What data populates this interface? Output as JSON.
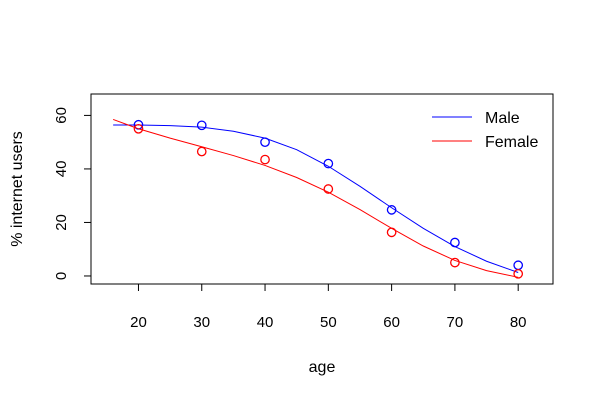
{
  "chart_data": {
    "type": "scatter",
    "title": "",
    "xlabel": "age",
    "ylabel": "% internet users",
    "xlim": [
      12.5,
      85.5
    ],
    "ylim": [
      -3,
      68
    ],
    "xticks": [
      20,
      30,
      40,
      50,
      60,
      70,
      80
    ],
    "yticks": [
      0,
      20,
      40,
      60
    ],
    "grid": false,
    "legend_position": "top-right",
    "series": [
      {
        "name": "Male",
        "color": "#0000ff",
        "marker": "open-circle",
        "x": [
          20,
          30,
          40,
          50,
          60,
          70,
          80
        ],
        "y": [
          56.5,
          56.3,
          50.0,
          42.0,
          24.7,
          12.5,
          4.0
        ],
        "fit_curve": {
          "x": [
            16,
            20,
            25,
            30,
            35,
            40,
            45,
            50,
            55,
            60,
            65,
            70,
            75,
            80
          ],
          "y": [
            56.4,
            56.4,
            56.2,
            55.6,
            54.1,
            51.5,
            47.2,
            41.0,
            33.5,
            25.5,
            17.8,
            11.0,
            5.5,
            1.3
          ]
        }
      },
      {
        "name": "Female",
        "color": "#ff0000",
        "marker": "open-circle",
        "x": [
          20,
          30,
          40,
          50,
          60,
          70,
          80
        ],
        "y": [
          55.0,
          46.5,
          43.5,
          32.5,
          16.3,
          5.0,
          0.8
        ],
        "fit_curve": {
          "x": [
            16,
            20,
            25,
            30,
            35,
            40,
            45,
            50,
            55,
            60,
            65,
            70,
            75,
            80
          ],
          "y": [
            58.5,
            55.0,
            51.5,
            48.3,
            45.0,
            41.3,
            36.8,
            31.3,
            24.8,
            17.8,
            11.2,
            5.8,
            2.0,
            -0.5
          ]
        }
      }
    ]
  }
}
